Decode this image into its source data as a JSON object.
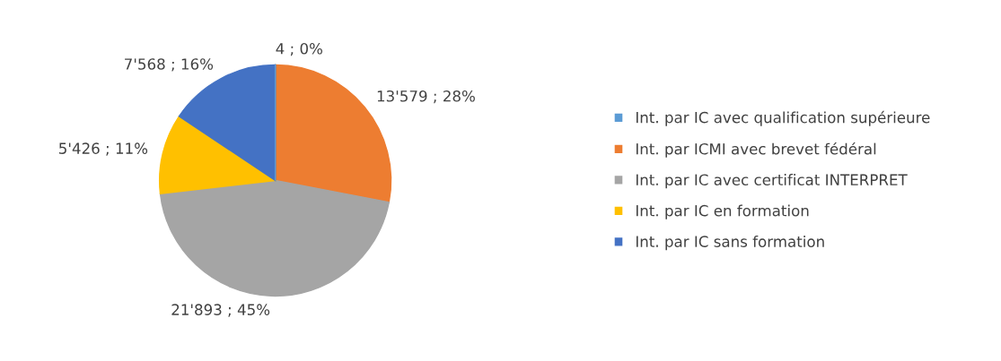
{
  "chart_data": {
    "type": "pie",
    "categories": [
      "Int. par IC avec qualification supérieure",
      "Int. par ICMI avec brevet fédéral",
      "Int. par IC avec certificat INTERPRET",
      "Int. par IC en formation",
      "Int. par IC sans formation"
    ],
    "values": [
      4,
      13579,
      21893,
      5426,
      7568
    ],
    "colors": [
      "#5b9bd5",
      "#ed7d31",
      "#a5a5a5",
      "#ffc000",
      "#4472c4"
    ],
    "value_labels": [
      "4 ; 0%",
      "13'579 ; 28%",
      "21'893 ; 45%",
      "5'426 ; 11%",
      "7'568 ; 16%"
    ],
    "legend": "right"
  }
}
